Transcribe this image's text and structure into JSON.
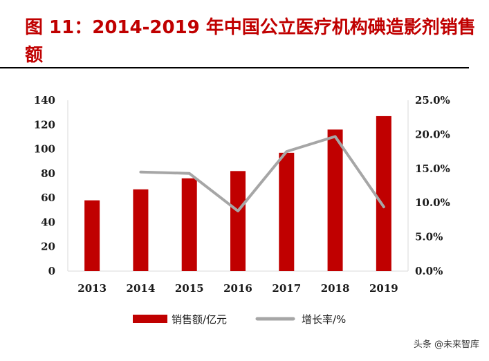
{
  "figure_title": "图 11：2014-2019 年中国公立医疗机构碘造影剂销售额",
  "watermark": "头条 @未来智库",
  "colors": {
    "bar": "#c00000",
    "line": "#a6a6a6",
    "title": "#c00000"
  },
  "chart_data": {
    "type": "bar",
    "categories": [
      "2013",
      "2014",
      "2015",
      "2016",
      "2017",
      "2018",
      "2019"
    ],
    "series": [
      {
        "name": "销售额/亿元",
        "type": "bar",
        "axis": "left",
        "values": [
          58,
          67,
          76,
          82,
          97,
          116,
          127
        ]
      },
      {
        "name": "增长率/%",
        "type": "line",
        "axis": "right",
        "values": [
          null,
          14.5,
          14.3,
          8.8,
          17.5,
          19.7,
          9.4
        ]
      }
    ],
    "y_left": {
      "ylim": [
        0,
        140
      ],
      "ticks": [
        "0",
        "20",
        "40",
        "60",
        "80",
        "100",
        "120",
        "140"
      ]
    },
    "y_right": {
      "ylim": [
        0,
        25
      ],
      "ticks": [
        "0.0%",
        "5.0%",
        "10.0%",
        "15.0%",
        "20.0%",
        "25.0%"
      ]
    },
    "legend": "bottom",
    "grid": false
  }
}
